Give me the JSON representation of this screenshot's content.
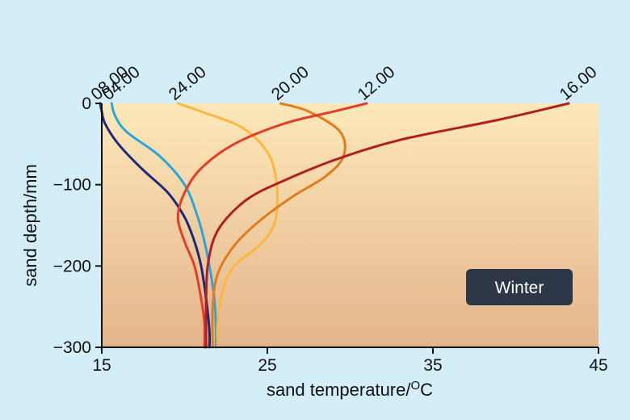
{
  "chart_data": {
    "type": "line",
    "xlabel": "sand temperature/",
    "xlabel_unit": "O",
    "xlabel_suffix": "C",
    "ylabel": "sand depth/mm",
    "xlim": [
      15,
      45
    ],
    "ylim": [
      -300,
      0
    ],
    "x_ticks": [
      15,
      25,
      35,
      45
    ],
    "x_tick_labels": [
      "15",
      "25",
      "35",
      "45"
    ],
    "y_ticks": [
      0,
      -100,
      -200,
      -300
    ],
    "y_tick_labels": [
      "0",
      "−100",
      "−200",
      "−300"
    ],
    "annotation": "Winter",
    "colors": {
      "background": "#d3eef9",
      "plot_top": "#fde8b9",
      "plot_bottom": "#e4b48b",
      "badge": "#2d3748"
    },
    "series": [
      {
        "name": "08.00",
        "color": "#1b2a80",
        "points": [
          [
            14.9,
            0
          ],
          [
            15,
            -10
          ],
          [
            15.2,
            -25
          ],
          [
            16,
            -50
          ],
          [
            17.4,
            -80
          ],
          [
            19,
            -110
          ],
          [
            20,
            -140
          ],
          [
            20.6,
            -170
          ],
          [
            21,
            -200
          ],
          [
            21.3,
            -240
          ],
          [
            21.5,
            -280
          ],
          [
            21.5,
            -300
          ]
        ]
      },
      {
        "name": "04.00",
        "color": "#26a7de",
        "points": [
          [
            15.6,
            0
          ],
          [
            15.8,
            -15
          ],
          [
            16.5,
            -35
          ],
          [
            18.5,
            -65
          ],
          [
            20,
            -100
          ],
          [
            20.8,
            -140
          ],
          [
            21.2,
            -170
          ],
          [
            21.5,
            -200
          ],
          [
            21.8,
            -240
          ],
          [
            21.9,
            -280
          ],
          [
            21.9,
            -300
          ]
        ]
      },
      {
        "name": "24.00",
        "color": "#fdb741",
        "points": [
          [
            19.6,
            0
          ],
          [
            21,
            -10
          ],
          [
            23.5,
            -30
          ],
          [
            25,
            -60
          ],
          [
            25.5,
            -90
          ],
          [
            25.6,
            -120
          ],
          [
            25.4,
            -150
          ],
          [
            24.5,
            -175
          ],
          [
            23,
            -200
          ],
          [
            22.3,
            -230
          ],
          [
            22,
            -270
          ],
          [
            22,
            -300
          ]
        ]
      },
      {
        "name": "20.00",
        "color": "#e07c1c",
        "points": [
          [
            25.8,
            0
          ],
          [
            27.5,
            -10
          ],
          [
            29.4,
            -35
          ],
          [
            29.6,
            -65
          ],
          [
            28.5,
            -90
          ],
          [
            26.5,
            -115
          ],
          [
            24.5,
            -145
          ],
          [
            23,
            -175
          ],
          [
            22,
            -210
          ],
          [
            21.7,
            -250
          ],
          [
            21.7,
            -300
          ]
        ]
      },
      {
        "name": "12.00",
        "color": "#e33e26",
        "points": [
          [
            31,
            0
          ],
          [
            29,
            -10
          ],
          [
            26,
            -25
          ],
          [
            23,
            -50
          ],
          [
            21,
            -80
          ],
          [
            20,
            -110
          ],
          [
            19.6,
            -140
          ],
          [
            20,
            -170
          ],
          [
            20.6,
            -200
          ],
          [
            21,
            -240
          ],
          [
            21.2,
            -270
          ],
          [
            21.2,
            -300
          ]
        ]
      },
      {
        "name": "16.00",
        "color": "#b21d21",
        "points": [
          [
            43.2,
            0
          ],
          [
            39,
            -20
          ],
          [
            33,
            -45
          ],
          [
            29,
            -70
          ],
          [
            26,
            -95
          ],
          [
            24,
            -115
          ],
          [
            22.6,
            -140
          ],
          [
            21.8,
            -165
          ],
          [
            21.4,
            -200
          ],
          [
            21.3,
            -240
          ],
          [
            21.3,
            -300
          ]
        ]
      }
    ]
  }
}
